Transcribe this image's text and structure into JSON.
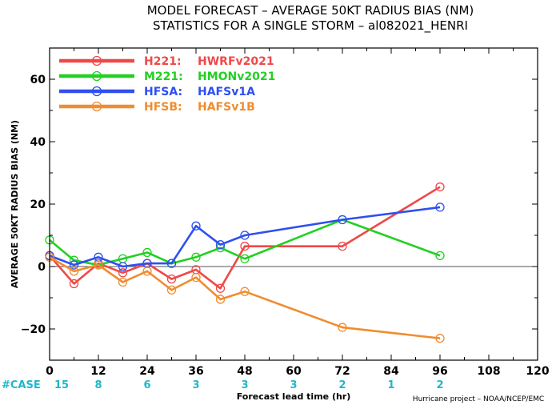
{
  "title_line1": "MODEL FORECAST – AVERAGE 50KT RADIUS BIAS (NM)",
  "title_line2": "STATISTICS FOR A SINGLE STORM – al082021_HENRI",
  "credit": "Hurricane project – NOAA/NCEP/EMC",
  "case_label": "#CASE",
  "colors": {
    "case": "#1fb8c8",
    "zero_line": "#555555"
  },
  "chart_data": {
    "type": "line",
    "xlabel": "Forecast lead time (hr)",
    "ylabel": "AVERAGE 50KT RADIUS BIAS (NM)",
    "xlim": [
      0,
      120
    ],
    "ylim": [
      -30,
      70
    ],
    "xticks": [
      0,
      12,
      24,
      36,
      48,
      60,
      72,
      84,
      96,
      108,
      120
    ],
    "yticks": [
      -20,
      0,
      20,
      40,
      60
    ],
    "legend_position": "top-left",
    "cases": [
      {
        "x": 0,
        "n": "15"
      },
      {
        "x": 12,
        "n": "8"
      },
      {
        "x": 24,
        "n": "6"
      },
      {
        "x": 36,
        "n": "3"
      },
      {
        "x": 48,
        "n": "3"
      },
      {
        "x": 60,
        "n": "3"
      },
      {
        "x": 72,
        "n": "2"
      },
      {
        "x": 84,
        "n": "1"
      },
      {
        "x": 96,
        "n": "2"
      }
    ],
    "series": [
      {
        "code": "H221:",
        "name": "HWRFv2021",
        "color": "#f04848",
        "x": [
          0,
          6,
          12,
          18,
          24,
          30,
          36,
          42,
          48,
          72,
          96
        ],
        "y": [
          3.5,
          -5.5,
          1.0,
          -2.0,
          1.0,
          -4.0,
          -1.0,
          -7.0,
          6.5,
          6.5,
          25.5
        ]
      },
      {
        "code": "M221:",
        "name": "HMONv2021",
        "color": "#22d022",
        "x": [
          0,
          6,
          12,
          18,
          24,
          30,
          36,
          42,
          48,
          72,
          96
        ],
        "y": [
          8.5,
          2.0,
          0.5,
          2.5,
          4.5,
          1.0,
          3.0,
          6.0,
          2.5,
          15.0,
          3.5
        ]
      },
      {
        "code": "HFSA:",
        "name": "HAFSv1A",
        "color": "#2f4ff0",
        "x": [
          0,
          6,
          12,
          18,
          24,
          30,
          36,
          42,
          48,
          72,
          96
        ],
        "y": [
          3.5,
          0.5,
          3.0,
          0.0,
          1.0,
          1.0,
          13.0,
          7.0,
          10.0,
          15.0,
          19.0
        ]
      },
      {
        "code": "HFSB:",
        "name": "HAFSv1B",
        "color": "#f08c30",
        "x": [
          0,
          6,
          12,
          18,
          24,
          30,
          36,
          42,
          48,
          72,
          96
        ],
        "y": [
          3.0,
          -1.5,
          0.5,
          -5.0,
          -1.5,
          -7.5,
          -3.5,
          -10.5,
          -8.0,
          -19.5,
          -23.0
        ]
      }
    ]
  }
}
